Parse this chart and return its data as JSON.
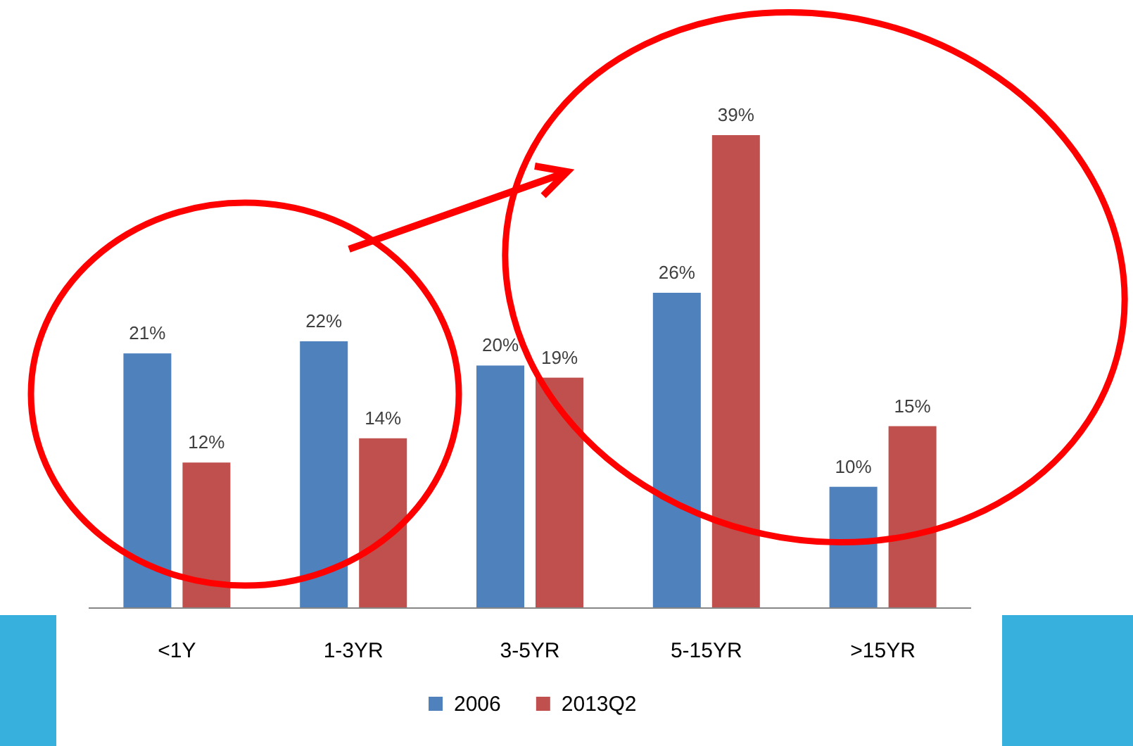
{
  "chart_data": {
    "type": "bar",
    "categories": [
      "<1Y",
      "1-3YR",
      "3-5YR",
      "5-15YR",
      ">15YR"
    ],
    "series": [
      {
        "name": "2006",
        "color": "#4f81bd",
        "values": [
          21,
          22,
          20,
          26,
          10
        ],
        "value_labels": [
          "21%",
          "22%",
          "20%",
          "26%",
          "10%"
        ]
      },
      {
        "name": "2013Q2",
        "color": "#c0504d",
        "values": [
          12,
          14,
          19,
          39,
          15
        ],
        "value_labels": [
          "12%",
          "14%",
          "19%",
          "39%",
          "15%"
        ]
      }
    ],
    "legend": "bottom"
  }
}
